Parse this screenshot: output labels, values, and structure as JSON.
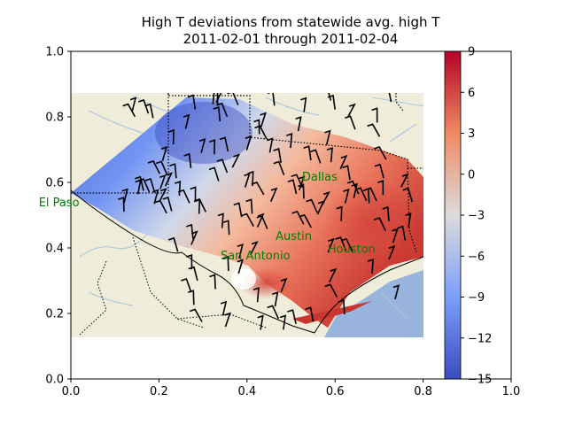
{
  "chart_data": {
    "type": "map-contour",
    "title_line1": "High T deviations from statewide avg. high T",
    "title_line2": "2011-02-01 through 2011-02-04",
    "xlim": [
      0.0,
      1.0
    ],
    "ylim": [
      0.0,
      1.0
    ],
    "x_ticks": [
      "0.0",
      "0.2",
      "0.4",
      "0.6",
      "0.8",
      "1.0"
    ],
    "y_ticks": [
      "0.0",
      "0.2",
      "0.4",
      "0.6",
      "0.8",
      "1.0"
    ],
    "colorbar": {
      "min": -15,
      "max": 9,
      "ticks": [
        "9",
        "6",
        "3",
        "0",
        "−3",
        "−6",
        "−9",
        "−12",
        "−15"
      ],
      "colormap": "coolwarm"
    },
    "cities": [
      {
        "name": "Dallas",
        "x": 0.525,
        "y": 0.605
      },
      {
        "name": "El Paso",
        "x": -0.073,
        "y": 0.527
      },
      {
        "name": "Austin",
        "x": 0.465,
        "y": 0.425
      },
      {
        "name": "San Antonio",
        "x": 0.34,
        "y": 0.365
      },
      {
        "name": "Houston",
        "x": 0.583,
        "y": 0.385
      }
    ],
    "colors": {
      "land": "#efedda",
      "ocean": "#98b4dc",
      "city_label": "#008000"
    }
  }
}
